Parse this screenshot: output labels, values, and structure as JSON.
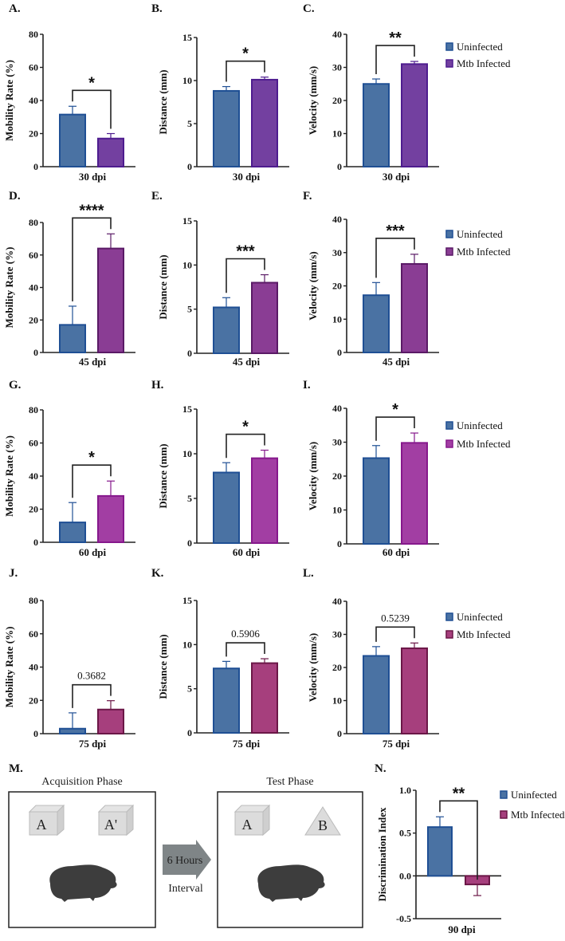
{
  "legend": {
    "uninfected": "Uninfected",
    "infected": "Mtb Infected"
  },
  "colors": {
    "uninfected_fill": "#4a72a3",
    "uninfected_stroke": "#1f4f94",
    "infected_30_fill": "#7340a0",
    "infected_30_stroke": "#4e1c8f",
    "infected_45_fill": "#8a3d94",
    "infected_45_stroke": "#5a1a66",
    "infected_60_fill": "#a23ea3",
    "infected_60_stroke": "#86188c",
    "infected_75_fill": "#a63f7d",
    "infected_75_stroke": "#6b1747"
  },
  "chart_data": [
    {
      "panel": "A.",
      "type": "bar",
      "xlabel": "30 dpi",
      "ylabel": "Mobility Rate (%)",
      "ylim": [
        0,
        80
      ],
      "yticks": [
        "0",
        "20",
        "40",
        "60",
        "80"
      ],
      "values": [
        31.5,
        17
      ],
      "errors": [
        5,
        3
      ],
      "significance": "*"
    },
    {
      "panel": "B.",
      "type": "bar",
      "xlabel": "30 dpi",
      "ylabel": "Distance (mm)",
      "ylim": [
        0,
        15
      ],
      "yticks": [
        "0",
        "5",
        "10",
        "15"
      ],
      "values": [
        8.8,
        10.1
      ],
      "errors": [
        0.5,
        0.3
      ],
      "significance": "*"
    },
    {
      "panel": "C.",
      "type": "bar",
      "xlabel": "30 dpi",
      "ylabel": "Velocity (mm/s)",
      "ylim": [
        0,
        40
      ],
      "yticks": [
        "0",
        "10",
        "20",
        "30",
        "40"
      ],
      "values": [
        25,
        31
      ],
      "errors": [
        1.5,
        0.8
      ],
      "significance": "**"
    },
    {
      "panel": "D.",
      "type": "bar",
      "xlabel": "45 dpi",
      "ylabel": "Mobility Rate (%)",
      "ylim": [
        0,
        80
      ],
      "yticks": [
        "0",
        "20",
        "40",
        "60",
        "80"
      ],
      "values": [
        17,
        64
      ],
      "errors": [
        11.5,
        9
      ],
      "significance": "****"
    },
    {
      "panel": "E.",
      "type": "bar",
      "xlabel": "45 dpi",
      "ylabel": "Distance (mm)",
      "ylim": [
        0,
        15
      ],
      "yticks": [
        "0",
        "5",
        "10",
        "15"
      ],
      "values": [
        5.2,
        8.0
      ],
      "errors": [
        1.1,
        0.9
      ],
      "significance": "***"
    },
    {
      "panel": "F.",
      "type": "bar",
      "xlabel": "45 dpi",
      "ylabel": "Velocity (mm/s)",
      "ylim": [
        0,
        40
      ],
      "yticks": [
        "0",
        "10",
        "20",
        "30",
        "40"
      ],
      "values": [
        17.2,
        26.6
      ],
      "errors": [
        3.8,
        2.9
      ],
      "significance": "***"
    },
    {
      "panel": "G.",
      "type": "bar",
      "xlabel": "60 dpi",
      "ylabel": "Mobility Rate (%)",
      "ylim": [
        0,
        80
      ],
      "yticks": [
        "0",
        "20",
        "40",
        "60",
        "80"
      ],
      "values": [
        12,
        28
      ],
      "errors": [
        12,
        9
      ],
      "significance": "*"
    },
    {
      "panel": "H.",
      "type": "bar",
      "xlabel": "60 dpi",
      "ylabel": "Distance (mm)",
      "ylim": [
        0,
        15
      ],
      "yticks": [
        "0",
        "5",
        "10",
        "15"
      ],
      "values": [
        7.9,
        9.5
      ],
      "errors": [
        1.1,
        0.9
      ],
      "significance": "*"
    },
    {
      "panel": "I.",
      "type": "bar",
      "xlabel": "60 dpi",
      "ylabel": "Velocity (mm/s)",
      "ylim": [
        0,
        40
      ],
      "yticks": [
        "0",
        "10",
        "20",
        "30",
        "40"
      ],
      "values": [
        25.3,
        29.8
      ],
      "errors": [
        3.7,
        2.9
      ],
      "significance": "*"
    },
    {
      "panel": "J.",
      "type": "bar",
      "xlabel": "75 dpi",
      "ylabel": "Mobility Rate (%)",
      "ylim": [
        0,
        80
      ],
      "yticks": [
        "0",
        "20",
        "40",
        "60",
        "80"
      ],
      "values": [
        3,
        14.5
      ],
      "errors": [
        9.5,
        5.3
      ],
      "significance": "0.3682"
    },
    {
      "panel": "K.",
      "type": "bar",
      "xlabel": "75 dpi",
      "ylabel": "Distance (mm)",
      "ylim": [
        0,
        15
      ],
      "yticks": [
        "0",
        "5",
        "10",
        "15"
      ],
      "values": [
        7.3,
        7.9
      ],
      "errors": [
        0.8,
        0.5
      ],
      "significance": "0.5906"
    },
    {
      "panel": "L.",
      "type": "bar",
      "xlabel": "75 dpi",
      "ylabel": "Velocity (mm/s)",
      "ylim": [
        0,
        40
      ],
      "yticks": [
        "0",
        "10",
        "20",
        "30",
        "40"
      ],
      "values": [
        23.5,
        25.8
      ],
      "errors": [
        2.8,
        1.6
      ],
      "significance": "0.5239"
    },
    {
      "panel": "N.",
      "type": "bar",
      "xlabel": "90 dpi",
      "ylabel": "Discrimination Index",
      "ylim": [
        -0.5,
        1.0
      ],
      "yticks": [
        "-0.5",
        "0.0",
        "0.5",
        "1.0"
      ],
      "values": [
        0.57,
        -0.1
      ],
      "errors": [
        0.12,
        0.13
      ],
      "significance": "**"
    }
  ],
  "diagram": {
    "panel": "M.",
    "acquisition_title": "Acquisition Phase",
    "test_title": "Test Phase",
    "interval_hours": "6 Hours",
    "interval_label": "Interval",
    "objects_acquisition": [
      "A",
      "A'"
    ],
    "objects_test": [
      "A",
      "B"
    ]
  }
}
